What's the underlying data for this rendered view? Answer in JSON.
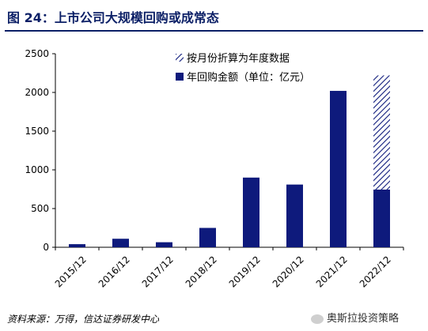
{
  "figure_title": "图 24：上市公司大规模回购或成常态",
  "source_note": "资料来源：万得，信达证券研发中心",
  "watermark": "奥斯拉投资策略",
  "colors": {
    "bar": "#0e1a7c",
    "title": "#0b1f66"
  },
  "chart_data": {
    "type": "bar",
    "stacked": true,
    "categories": [
      "2015/12",
      "2016/12",
      "2017/12",
      "2018/12",
      "2019/12",
      "2020/12",
      "2021/12",
      "2022/12"
    ],
    "series": [
      {
        "name": "年回购金额（单位：亿元）",
        "values": [
          40,
          110,
          65,
          250,
          900,
          810,
          2020,
          745
        ]
      },
      {
        "name": "按月份折算为年度数据",
        "values": [
          0,
          0,
          0,
          0,
          0,
          0,
          0,
          1475
        ]
      }
    ],
    "ylim": [
      0,
      2500
    ],
    "yticks": [
      0,
      500,
      1000,
      1500,
      2000,
      2500
    ],
    "legend_position": "top-right"
  }
}
